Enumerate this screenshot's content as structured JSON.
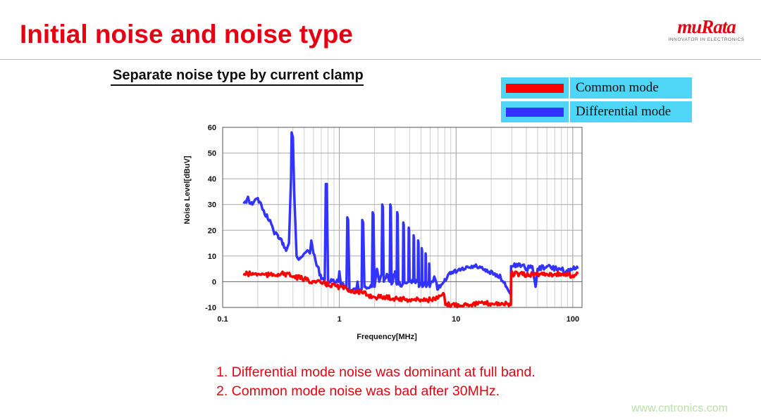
{
  "slide": {
    "title": "Initial noise and noise type",
    "logo_wordmark": "muRata",
    "logo_tagline": "INNOVATOR IN ELECTRONICS",
    "subtitle": "Separate noise type by current clamp",
    "notes": [
      "1.  Differential mode noise was dominant at full band.",
      "2. Common mode noise was bad after 30MHz."
    ],
    "watermark": "www.cntronics.com"
  },
  "legend": [
    {
      "label": "Common mode",
      "color": "#ff0000"
    },
    {
      "label": "Differential mode",
      "color": "#3333ff"
    }
  ],
  "chart_data": {
    "type": "line",
    "xlabel": "Frequency[MHz]",
    "ylabel": "Noise Level[dBuV]",
    "xscale": "log",
    "xlim": [
      0.1,
      120
    ],
    "ylim": [
      -10,
      60
    ],
    "xticks": [
      "0.1",
      "1",
      "10",
      "100"
    ],
    "xtick_values": [
      0.1,
      1,
      10,
      100
    ],
    "yticks": [
      "60",
      "50",
      "40",
      "30",
      "20",
      "10",
      "0",
      "-10"
    ],
    "ytick_values": [
      60,
      50,
      40,
      30,
      20,
      10,
      0,
      -10
    ],
    "grid": true,
    "legend_position": "top-right outside",
    "series": [
      {
        "name": "Differential mode",
        "color": "#3333ff",
        "points": [
          [
            0.15,
            31
          ],
          [
            0.16,
            31.5
          ],
          [
            0.165,
            33
          ],
          [
            0.17,
            30.5
          ],
          [
            0.18,
            30
          ],
          [
            0.19,
            32
          ],
          [
            0.2,
            32.5
          ],
          [
            0.22,
            28
          ],
          [
            0.25,
            24
          ],
          [
            0.28,
            19
          ],
          [
            0.3,
            17
          ],
          [
            0.33,
            15
          ],
          [
            0.35,
            12
          ],
          [
            0.37,
            15
          ],
          [
            0.385,
            40
          ],
          [
            0.39,
            58
          ],
          [
            0.4,
            56
          ],
          [
            0.41,
            35
          ],
          [
            0.43,
            10
          ],
          [
            0.46,
            9
          ],
          [
            0.5,
            11
          ],
          [
            0.54,
            12
          ],
          [
            0.56,
            11
          ],
          [
            0.575,
            16
          ],
          [
            0.6,
            11
          ],
          [
            0.65,
            6
          ],
          [
            0.7,
            1
          ],
          [
            0.75,
            1
          ],
          [
            0.765,
            38
          ],
          [
            0.78,
            38
          ],
          [
            0.8,
            0
          ],
          [
            0.9,
            0
          ],
          [
            0.98,
            0
          ],
          [
            1.0,
            4
          ],
          [
            1.03,
            -1
          ],
          [
            1.15,
            -2
          ],
          [
            1.17,
            25
          ],
          [
            1.19,
            24
          ],
          [
            1.22,
            -3
          ],
          [
            1.4,
            -3
          ],
          [
            1.43,
            0
          ],
          [
            1.46,
            -3
          ],
          [
            1.55,
            -3
          ],
          [
            1.57,
            24
          ],
          [
            1.6,
            23
          ],
          [
            1.64,
            -2
          ],
          [
            1.9,
            -2
          ],
          [
            1.93,
            27
          ],
          [
            1.96,
            26
          ],
          [
            2.0,
            -2
          ],
          [
            2.1,
            5
          ],
          [
            2.2,
            0
          ],
          [
            2.3,
            3
          ],
          [
            2.33,
            30
          ],
          [
            2.36,
            29
          ],
          [
            2.4,
            0
          ],
          [
            2.55,
            3
          ],
          [
            2.7,
            0
          ],
          [
            2.73,
            30
          ],
          [
            2.76,
            29
          ],
          [
            2.8,
            -1
          ],
          [
            3.0,
            4
          ],
          [
            3.1,
            -1
          ],
          [
            3.13,
            27
          ],
          [
            3.16,
            26
          ],
          [
            3.2,
            -1
          ],
          [
            3.5,
            -1
          ],
          [
            3.53,
            23
          ],
          [
            3.56,
            22
          ],
          [
            3.6,
            0
          ],
          [
            3.9,
            0
          ],
          [
            3.93,
            21
          ],
          [
            3.96,
            20
          ],
          [
            4.0,
            0
          ],
          [
            4.3,
            0
          ],
          [
            4.33,
            18
          ],
          [
            4.36,
            17
          ],
          [
            4.4,
            0
          ],
          [
            4.7,
            0
          ],
          [
            4.73,
            16
          ],
          [
            4.76,
            15
          ],
          [
            4.8,
            -2
          ],
          [
            5.05,
            0
          ],
          [
            5.08,
            13
          ],
          [
            5.11,
            12
          ],
          [
            5.15,
            -2
          ],
          [
            5.45,
            0
          ],
          [
            5.48,
            11
          ],
          [
            5.51,
            10
          ],
          [
            5.55,
            -2
          ],
          [
            5.85,
            0
          ],
          [
            5.88,
            7
          ],
          [
            5.91,
            6
          ],
          [
            5.95,
            -2
          ],
          [
            6.5,
            2
          ],
          [
            7,
            -3
          ],
          [
            8,
            1
          ],
          [
            9,
            3
          ],
          [
            10,
            4
          ],
          [
            12,
            5
          ],
          [
            15,
            6
          ],
          [
            18,
            4
          ],
          [
            21,
            3
          ],
          [
            24,
            2
          ],
          [
            27,
            -2
          ],
          [
            28.5,
            -4
          ],
          [
            29.5,
            -5
          ],
          [
            29.6,
            6
          ],
          [
            31,
            6
          ],
          [
            35,
            7
          ],
          [
            40,
            5
          ],
          [
            45,
            6
          ],
          [
            48,
            -2
          ],
          [
            50,
            5
          ],
          [
            60,
            6
          ],
          [
            70,
            5
          ],
          [
            80,
            5
          ],
          [
            90,
            4
          ],
          [
            100,
            5
          ],
          [
            110,
            5
          ]
        ]
      },
      {
        "name": "Common mode",
        "color": "#ff0000",
        "points": [
          [
            0.15,
            3
          ],
          [
            0.2,
            3
          ],
          [
            0.25,
            2.5
          ],
          [
            0.3,
            3
          ],
          [
            0.35,
            3
          ],
          [
            0.4,
            2
          ],
          [
            0.5,
            1
          ],
          [
            0.6,
            0
          ],
          [
            0.7,
            -0.5
          ],
          [
            0.8,
            -1
          ],
          [
            1.0,
            -2
          ],
          [
            1.3,
            -3.5
          ],
          [
            1.6,
            -4.5
          ],
          [
            2.0,
            -6
          ],
          [
            2.5,
            -6
          ],
          [
            3.0,
            -6.5
          ],
          [
            4,
            -7
          ],
          [
            5,
            -7
          ],
          [
            6,
            -7
          ],
          [
            7,
            -6.5
          ],
          [
            7.9,
            -5
          ],
          [
            8.1,
            -9
          ],
          [
            10,
            -9
          ],
          [
            15,
            -8.5
          ],
          [
            20,
            -8.5
          ],
          [
            25,
            -8.5
          ],
          [
            29.5,
            -9
          ],
          [
            29.6,
            3
          ],
          [
            35,
            3
          ],
          [
            40,
            2.5
          ],
          [
            50,
            3
          ],
          [
            60,
            3
          ],
          [
            70,
            3
          ],
          [
            80,
            3
          ],
          [
            90,
            2.5
          ],
          [
            100,
            2.5
          ],
          [
            110,
            3
          ]
        ]
      }
    ]
  }
}
